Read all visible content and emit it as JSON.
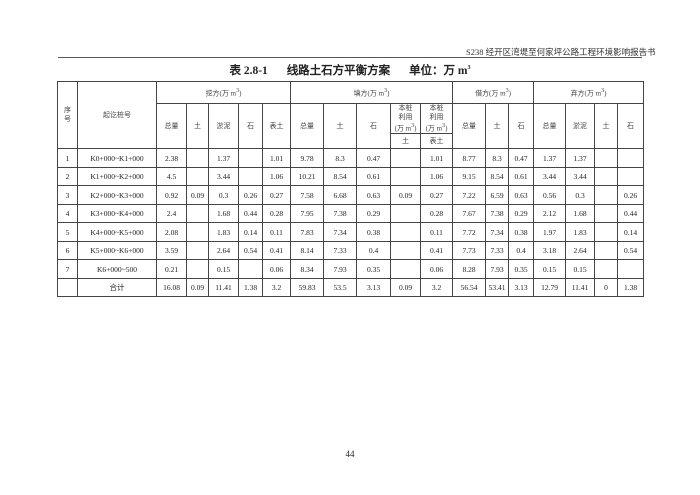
{
  "running_header": "S238 经开区湾堤至何家坪公路工程环境影响报告书",
  "title": {
    "number": "表 2.8-1",
    "name": "线路土石方平衡方案",
    "unit_label": "单位：万 m",
    "unit_sup": "3"
  },
  "table": {
    "col_seq": "序号",
    "col_station": "起讫桩号",
    "groups": {
      "cut": "挖方(万 m",
      "fill": "填方(万 m",
      "borrow": "借方(万 m",
      "waste": "弃方(万 m",
      "sup": "3",
      "close": ")"
    },
    "cut_cols": [
      "总量",
      "土",
      "淤泥",
      "石",
      "表土"
    ],
    "fill_cols": [
      "总量",
      "土",
      "石"
    ],
    "reuse_label": "本桩利用(万 m",
    "reuse_sub": [
      "土",
      "表土"
    ],
    "borrow_cols": [
      "总量",
      "土",
      "石"
    ],
    "waste_cols": [
      "总量",
      "淤泥",
      "土",
      "石"
    ],
    "rows": [
      [
        "1",
        "K0+000~K1+000",
        "2.38",
        "",
        "1.37",
        "",
        "1.01",
        "9.78",
        "8.3",
        "0.47",
        "",
        "1.01",
        "8.77",
        "8.3",
        "0.47",
        "1.37",
        "1.37",
        "",
        ""
      ],
      [
        "2",
        "K1+000~K2+000",
        "4.5",
        "",
        "3.44",
        "",
        "1.06",
        "10.21",
        "8.54",
        "0.61",
        "",
        "1.06",
        "9.15",
        "8.54",
        "0.61",
        "3.44",
        "3.44",
        "",
        ""
      ],
      [
        "3",
        "K2+000~K3+000",
        "0.92",
        "0.09",
        "0.3",
        "0.26",
        "0.27",
        "7.58",
        "6.68",
        "0.63",
        "0.09",
        "0.27",
        "7.22",
        "6.59",
        "0.63",
        "0.56",
        "0.3",
        "",
        "0.26"
      ],
      [
        "4",
        "K3+000~K4+000",
        "2.4",
        "",
        "1.68",
        "0.44",
        "0.28",
        "7.95",
        "7.38",
        "0.29",
        "",
        "0.28",
        "7.67",
        "7.38",
        "0.29",
        "2.12",
        "1.68",
        "",
        "0.44"
      ],
      [
        "5",
        "K4+000~K5+000",
        "2.08",
        "",
        "1.83",
        "0.14",
        "0.11",
        "7.83",
        "7.34",
        "0.38",
        "",
        "0.11",
        "7.72",
        "7.34",
        "0.38",
        "1.97",
        "1.83",
        "",
        "0.14"
      ],
      [
        "6",
        "K5+000~K6+000",
        "3.59",
        "",
        "2.64",
        "0.54",
        "0.41",
        "8.14",
        "7.33",
        "0.4",
        "",
        "0.41",
        "7.73",
        "7.33",
        "0.4",
        "3.18",
        "2.64",
        "",
        "0.54"
      ],
      [
        "7",
        "K6+000~500",
        "0.21",
        "",
        "0.15",
        "",
        "0.06",
        "8.34",
        "7.93",
        "0.35",
        "",
        "0.06",
        "8.28",
        "7.93",
        "0.35",
        "0.15",
        "0.15",
        "",
        ""
      ],
      [
        "",
        "合计",
        "16.08",
        "0.09",
        "11.41",
        "1.38",
        "3.2",
        "59.83",
        "53.5",
        "3.13",
        "0.09",
        "3.2",
        "56.54",
        "53.41",
        "3.13",
        "12.79",
        "11.41",
        "0",
        "1.38"
      ]
    ]
  },
  "page_number": "44"
}
